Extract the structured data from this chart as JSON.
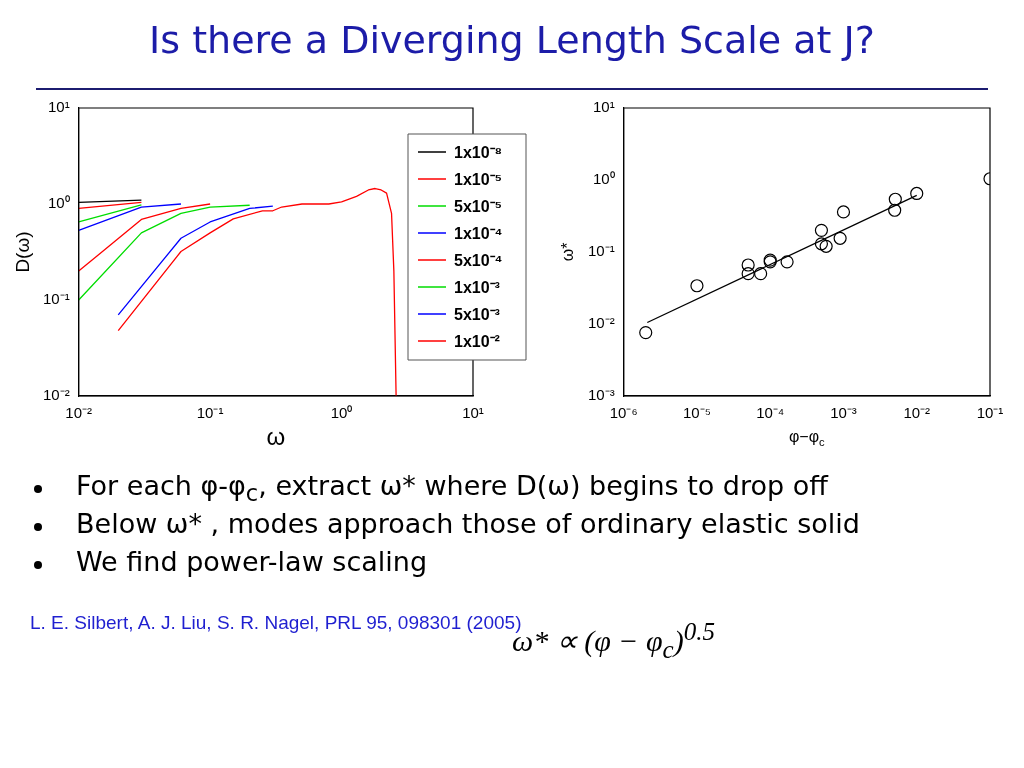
{
  "chart_data": [
    {
      "type": "line",
      "title": "Is there a Diverging Length Scale at J?",
      "xlabel": "ω",
      "ylabel": "D(ω)",
      "log": "xy",
      "xlim": [
        0.01,
        10
      ],
      "ylim": [
        0.01,
        10
      ],
      "xticks": [
        {
          "value": 0.01,
          "label": "10⁻²"
        },
        {
          "value": 0.1,
          "label": "10⁻¹"
        },
        {
          "value": 1,
          "label": "10⁰"
        },
        {
          "value": 10,
          "label": "10¹"
        }
      ],
      "yticks": [
        {
          "value": 0.01,
          "label": "10⁻²"
        },
        {
          "value": 0.1,
          "label": "10⁻¹"
        },
        {
          "value": 1,
          "label": "10⁰"
        },
        {
          "value": 10,
          "label": "10¹"
        }
      ],
      "grid": false,
      "legend": "top right",
      "marker": "none",
      "line_style": "solid",
      "series": [
        {
          "name": "1x10⁻⁸",
          "color": "#000000",
          "x": [
            0.01,
            0.03
          ],
          "values": [
            1.04,
            1.1
          ]
        },
        {
          "name": "1x10⁻⁵",
          "color": "#ff0000",
          "x": [
            0.01,
            0.03
          ],
          "values": [
            0.9,
            1.04
          ]
        },
        {
          "name": "5x10⁻⁵",
          "color": "#00dd00",
          "x": [
            0.01,
            0.03
          ],
          "values": [
            0.65,
            0.98
          ]
        },
        {
          "name": "1x10⁻⁴",
          "color": "#0000ff",
          "x": [
            0.01,
            0.03,
            0.06
          ],
          "values": [
            0.53,
            0.93,
            1.0
          ]
        },
        {
          "name": "5x10⁻⁴",
          "color": "#ff0000",
          "x": [
            0.01,
            0.03,
            0.06,
            0.1
          ],
          "values": [
            0.2,
            0.69,
            0.9,
            1.0
          ]
        },
        {
          "name": "1x10⁻³",
          "color": "#00dd00",
          "x": [
            0.01,
            0.03,
            0.06,
            0.1,
            0.2
          ],
          "values": [
            0.1,
            0.5,
            0.8,
            0.93,
            0.97
          ]
        },
        {
          "name": "5x10⁻³",
          "color": "#0000ff",
          "x": [
            0.02,
            0.06,
            0.1,
            0.2,
            0.3
          ],
          "values": [
            0.07,
            0.44,
            0.65,
            0.9,
            0.95
          ]
        },
        {
          "name": "1x10⁻²",
          "color": "#ff0000",
          "x": [
            0.02,
            0.06,
            0.1,
            0.15,
            0.25,
            0.3,
            0.35,
            0.5,
            0.8,
            1.0,
            1.3,
            1.6,
            1.8,
            2.0,
            2.2,
            2.4,
            2.5,
            2.6
          ],
          "values": [
            0.048,
            0.32,
            0.5,
            0.7,
            0.85,
            0.85,
            0.93,
            1.0,
            1.0,
            1.05,
            1.2,
            1.4,
            1.45,
            1.4,
            1.3,
            0.8,
            0.2,
            0.01
          ]
        }
      ]
    },
    {
      "type": "scatter",
      "xlabel": "φ−φ$_{c}$",
      "ylabel": "ω*",
      "log": "xy",
      "xlim": [
        1e-06,
        0.1
      ],
      "ylim": [
        0.001,
        10
      ],
      "xticks": [
        {
          "value": 1e-06,
          "label": "10⁻⁶"
        },
        {
          "value": 1e-05,
          "label": "10⁻⁵"
        },
        {
          "value": 0.0001,
          "label": "10⁻⁴"
        },
        {
          "value": 0.001,
          "label": "10⁻³"
        },
        {
          "value": 0.01,
          "label": "10⁻²"
        },
        {
          "value": 0.1,
          "label": "10⁻¹"
        }
      ],
      "yticks": [
        {
          "value": 0.001,
          "label": "10⁻³"
        },
        {
          "value": 0.01,
          "label": "10⁻²"
        },
        {
          "value": 0.1,
          "label": "10⁻¹"
        },
        {
          "value": 1,
          "label": "10⁰"
        },
        {
          "value": 10,
          "label": "10¹"
        }
      ],
      "grid": false,
      "series": [
        {
          "type": "scatter",
          "marker": "circle",
          "color": "#000000",
          "x": [
            2e-06,
            1e-05,
            5e-05,
            5e-05,
            7.4e-05,
            0.0001,
            0.0001,
            0.00017,
            0.0005,
            0.0005,
            0.00058,
            0.0009,
            0.001,
            0.0051,
            0.005,
            0.01,
            0.1
          ],
          "values": [
            0.0076,
            0.034,
            0.066,
            0.05,
            0.05,
            0.077,
            0.073,
            0.073,
            0.2,
            0.13,
            0.12,
            0.155,
            0.36,
            0.54,
            0.38,
            0.65,
            1.04
          ]
        },
        {
          "type": "line",
          "marker": "none",
          "color": "#000000",
          "x": [
            2.1e-06,
            0.01
          ],
          "values": [
            0.0105,
            0.61
          ]
        }
      ],
      "annotations": [
        "For each φ-φ$_{c}$, extract ω* where D(ω) begins to drop off",
        "Below ω* , modes approach those of ordinary elastic solid",
        "We find power-law scaling",
        "L. E. Silbert, A. J. Liu, S. R. Nagel, PRL 95, 098301 (2005)",
        "ω* ∝ (φ − φ$_{c}$)$^{0.5}$"
      ]
    }
  ]
}
